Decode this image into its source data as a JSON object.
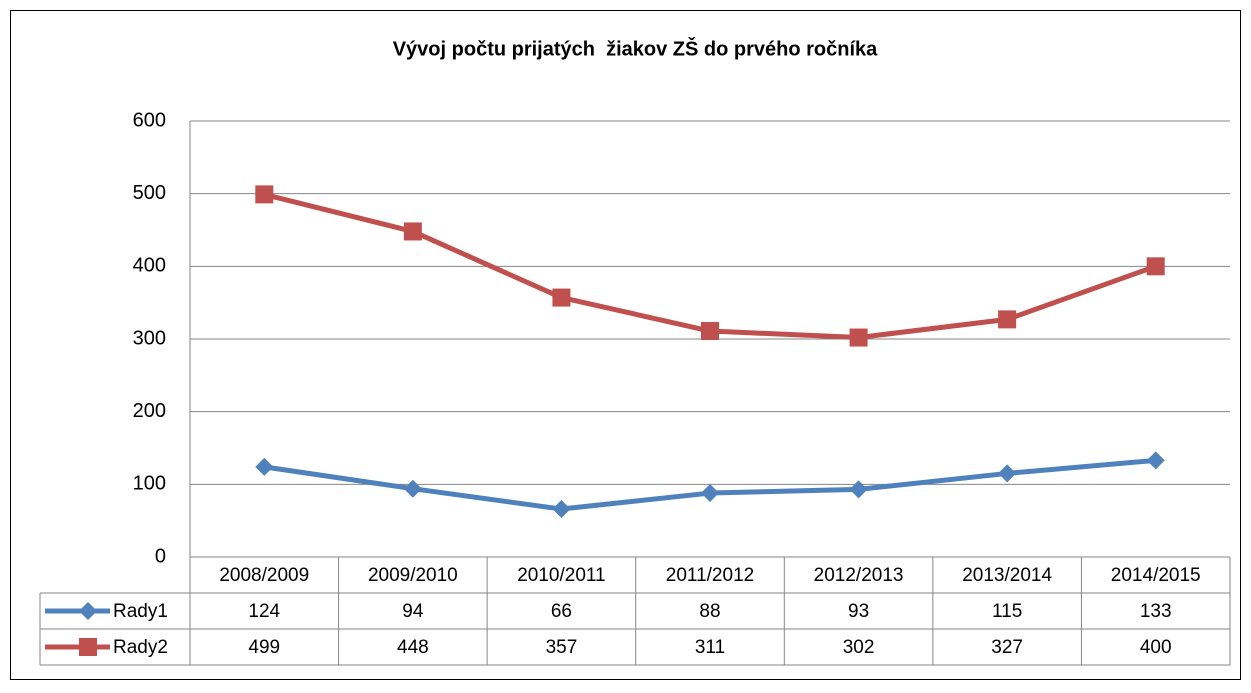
{
  "chart_data": {
    "type": "line",
    "title": "Vývoj počtu prijatých  žiakov ZŠ do prvého ročníka",
    "categories": [
      "2008/2009",
      "2009/2010",
      "2010/2011",
      "2011/2012",
      "2012/2013",
      "2013/2014",
      "2014/2015"
    ],
    "series": [
      {
        "name": "Rady1",
        "color": "#4f81bd",
        "marker": "diamond",
        "values": [
          124,
          94,
          66,
          88,
          93,
          115,
          133
        ]
      },
      {
        "name": "Rady2",
        "color": "#c0504d",
        "marker": "square",
        "values": [
          499,
          448,
          357,
          311,
          302,
          327,
          400
        ]
      }
    ],
    "ylim": [
      0,
      600
    ],
    "yticks": [
      0,
      100,
      200,
      300,
      400,
      500,
      600
    ],
    "grid": true
  }
}
